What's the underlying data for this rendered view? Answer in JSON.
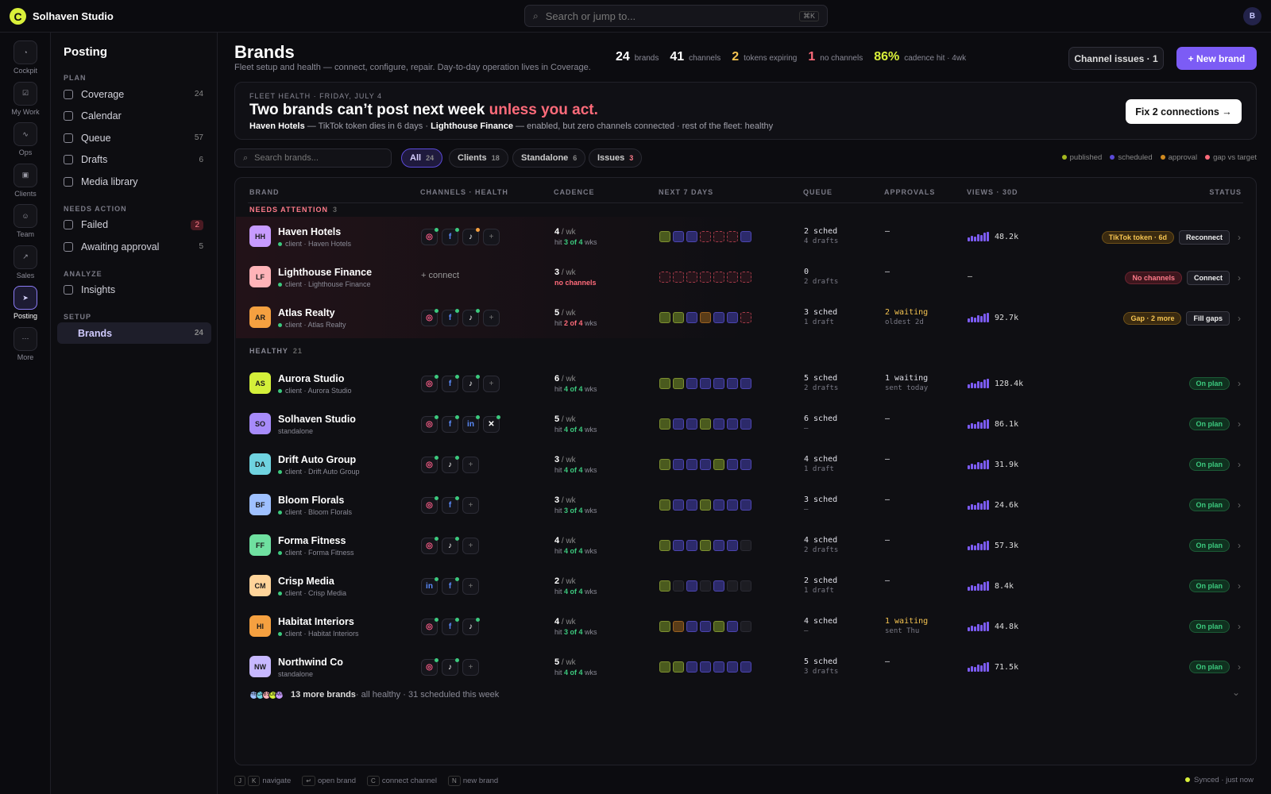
{
  "app": {
    "logo": "C",
    "name": "Solhaven Studio",
    "avatar": "B",
    "search_placeholder": "Search or jump to...",
    "search_kbd": "⌘K"
  },
  "rail": [
    {
      "label": "Cockpit",
      "icon": "gauge-icon"
    },
    {
      "label": "My Work",
      "icon": "check-square-icon"
    },
    {
      "label": "Ops",
      "icon": "activity-icon"
    },
    {
      "label": "Clients",
      "icon": "briefcase-icon"
    },
    {
      "label": "Team",
      "icon": "users-icon"
    },
    {
      "label": "Sales",
      "icon": "trend-icon"
    },
    {
      "label": "Posting",
      "icon": "send-icon",
      "active": true
    },
    {
      "label": "More",
      "icon": "dots-icon"
    }
  ],
  "sidebar": {
    "title": "Posting",
    "sections": [
      {
        "label": "PLAN",
        "items": [
          {
            "label": "Coverage",
            "count": "24"
          },
          {
            "label": "Calendar",
            "count": ""
          },
          {
            "label": "Queue",
            "count": "57"
          },
          {
            "label": "Drafts",
            "count": "6"
          },
          {
            "label": "Media library",
            "count": ""
          }
        ]
      },
      {
        "label": "NEEDS ACTION",
        "items": [
          {
            "label": "Failed",
            "count": "2"
          },
          {
            "label": "Awaiting approval",
            "count": "5"
          }
        ]
      },
      {
        "label": "ANALYZE",
        "items": [
          {
            "label": "Insights",
            "count": ""
          }
        ]
      },
      {
        "label": "SETUP",
        "items": [
          {
            "label": "Brands",
            "count": "24"
          }
        ]
      }
    ]
  },
  "header": {
    "title": "Brands",
    "subtitle": "Fleet setup and health — connect, configure, repair. Day-to-day operation lives in Coverage.",
    "stats": [
      {
        "n": "24",
        "l": "brands",
        "color": "#ffffff"
      },
      {
        "n": "41",
        "l": "channels",
        "color": "#ffffff"
      },
      {
        "n": "2",
        "l": "tokens expiring",
        "color": "#f5c451"
      },
      {
        "n": "1",
        "l": "no channels",
        "color": "#ff6b7a"
      },
      {
        "n": "86%",
        "l": "cadence hit · 4wk",
        "color": "#d9f03a"
      }
    ],
    "issues_btn": "Channel issues · 1",
    "new_btn": "+ New brand"
  },
  "hero": {
    "kicker": "FLEET HEALTH · FRIDAY, JULY 4",
    "headline": "Two brands can’t post next week ",
    "headline_accent": "unless you act.",
    "b1": "Haven Hotels",
    "t1": " — TikTok token dies in 6 days · ",
    "b2": "Lighthouse Finance",
    "t2": " — enabled, but zero channels connected · rest of the fleet: healthy",
    "btn": "Fix 2 connections →"
  },
  "filters": {
    "search_placeholder": "Search brands...",
    "chips": [
      {
        "label": "All",
        "count": "24",
        "on": true
      },
      {
        "label": "Clients",
        "count": "18"
      },
      {
        "label": "Standalone",
        "count": "6"
      },
      {
        "label": "Issues",
        "count": "3"
      }
    ],
    "legend": [
      {
        "label": "published",
        "color": "#a5b820"
      },
      {
        "label": "scheduled",
        "color": "#5b4ad8"
      },
      {
        "label": "approval",
        "color": "#d08a20"
      },
      {
        "label": "gap vs target",
        "color": "#ff6b7a"
      }
    ]
  },
  "columns": [
    "BRAND",
    "CHANNELS · HEALTH",
    "CADENCE",
    "NEXT 7 DAYS",
    "QUEUE",
    "APPROVALS",
    "VIEWS · 30D",
    "STATUS"
  ],
  "groups": {
    "attention": {
      "label": "NEEDS ATTENTION",
      "count": "3"
    },
    "healthy": {
      "label": "HEALTHY",
      "count": "21"
    }
  },
  "rows": [
    {
      "ini": "HH",
      "color": "#c79bff",
      "name": "Haven Hotels",
      "sub": "client · Haven Hotels",
      "ch": [
        [
          "ig",
          "#3cc97e"
        ],
        [
          "f",
          "#3cc97e"
        ],
        [
          "tt",
          "#f5a040"
        ],
        [
          "+",
          ""
        ]
      ],
      "rate": "4",
      "hit": "3 of 4",
      "hitc": "g",
      "days": "pssgggs",
      "q": "2 sched",
      "qs": "4 drafts",
      "ap": "—",
      "aps": "",
      "w": false,
      "views": "48.2k",
      "pill": "TikTok token · 6d",
      "pc": "o",
      "action": "Reconnect",
      "warn": true
    },
    {
      "ini": "LF",
      "color": "#ffb3b8",
      "name": "Lighthouse Finance",
      "sub": "client · Lighthouse Finance",
      "ch": [],
      "connect": "+ connect",
      "rate": "3",
      "nochan": "no channels",
      "days": "ggggggg",
      "q": "0",
      "qs": "2 drafts",
      "ap": "—",
      "aps": "",
      "views": "—",
      "pill": "No channels",
      "pc": "r",
      "action": "Connect",
      "warn": true
    },
    {
      "ini": "AR",
      "color": "#f5a040",
      "name": "Atlas Realty",
      "sub": "client · Atlas Realty",
      "ch": [
        [
          "ig",
          "#3cc97e"
        ],
        [
          "f",
          "#3cc97e"
        ],
        [
          "tt",
          "#3cc97e"
        ],
        [
          "+",
          ""
        ]
      ],
      "rate": "5",
      "hit": "2 of 4",
      "hitc": "r",
      "days": "ppsassg",
      "q": "3 sched",
      "qs": "1 draft",
      "ap": "2 waiting",
      "aps": "oldest 2d",
      "w": true,
      "views": "92.7k",
      "pill": "Gap · 2 more",
      "pc": "o",
      "action": "Fill gaps",
      "warn": true
    },
    {
      "ini": "AS",
      "color": "#d4f03a",
      "name": "Aurora Studio",
      "sub": "client · Aurora Studio",
      "ch": [
        [
          "ig",
          "#3cc97e"
        ],
        [
          "f",
          "#3cc97e"
        ],
        [
          "tt",
          "#3cc97e"
        ],
        [
          "+",
          ""
        ]
      ],
      "rate": "6",
      "hit": "4 of 4",
      "hitc": "g",
      "days": "ppsssss",
      "q": "5 sched",
      "qs": "2 drafts",
      "ap": "1 waiting",
      "aps": "sent today",
      "w": false,
      "views": "128.4k",
      "pill": "On plan",
      "pc": "g"
    },
    {
      "ini": "SO",
      "color": "#a78bfa",
      "name": "Solhaven Studio",
      "sub": "standalone",
      "ch": [
        [
          "ig",
          "#3cc97e"
        ],
        [
          "f",
          "#3cc97e"
        ],
        [
          "in",
          "#3cc97e"
        ],
        [
          "x",
          "#3cc97e"
        ]
      ],
      "rate": "5",
      "hit": "4 of 4",
      "hitc": "g",
      "days": "psspsss",
      "q": "6 sched",
      "qs": "—",
      "ap": "—",
      "aps": "",
      "views": "86.1k",
      "pill": "On plan",
      "pc": "g"
    },
    {
      "ini": "DA",
      "color": "#6fd3e0",
      "name": "Drift Auto Group",
      "sub": "client · Drift Auto Group",
      "ch": [
        [
          "ig",
          "#3cc97e"
        ],
        [
          "tt",
          "#3cc97e"
        ],
        [
          "+",
          ""
        ]
      ],
      "rate": "3",
      "hit": "4 of 4",
      "hitc": "g",
      "days": "psssps s",
      "q": "4 sched",
      "qs": "1 draft",
      "ap": "—",
      "aps": "",
      "views": "31.9k",
      "pill": "On plan",
      "pc": "g"
    },
    {
      "ini": "BF",
      "color": "#9ec0ff",
      "name": "Bloom Florals",
      "sub": "client · Bloom Florals",
      "ch": [
        [
          "ig",
          "#3cc97e"
        ],
        [
          "f",
          "#3cc97e"
        ],
        [
          "+",
          ""
        ]
      ],
      "rate": "3",
      "hit": "3 of 4",
      "hitc": "g",
      "days": "psspsss",
      "q": "3 sched",
      "qs": "—",
      "ap": "—",
      "aps": "",
      "views": "24.6k",
      "pill": "On plan",
      "pc": "g"
    },
    {
      "ini": "FF",
      "color": "#6fe0a0",
      "name": "Forma Fitness",
      "sub": "client · Forma Fitness",
      "ch": [
        [
          "ig",
          "#3cc97e"
        ],
        [
          "tt",
          "#3cc97e"
        ],
        [
          "+",
          ""
        ]
      ],
      "rate": "4",
      "hit": "4 of 4",
      "hitc": "g",
      "days": "psspsse",
      "q": "4 sched",
      "qs": "2 drafts",
      "ap": "—",
      "aps": "",
      "views": "57.3k",
      "pill": "On plan",
      "pc": "g"
    },
    {
      "ini": "CM",
      "color": "#ffd49a",
      "name": "Crisp Media",
      "sub": "client · Crisp Media",
      "ch": [
        [
          "in",
          "#3cc97e"
        ],
        [
          "f",
          "#3cc97e"
        ],
        [
          "+",
          ""
        ]
      ],
      "rate": "2",
      "hit": "4 of 4",
      "hitc": "g",
      "days": "pesesee",
      "q": "2 sched",
      "qs": "1 draft",
      "ap": "—",
      "aps": "",
      "views": "8.4k",
      "pill": "On plan",
      "pc": "g"
    },
    {
      "ini": "HI",
      "color": "#f5a040",
      "name": "Habitat Interiors",
      "sub": "client · Habitat Interiors",
      "ch": [
        [
          "ig",
          "#3cc97e"
        ],
        [
          "f",
          "#3cc97e"
        ],
        [
          "tt",
          "#3cc97e"
        ]
      ],
      "rate": "4",
      "hit": "3 of 4",
      "hitc": "g",
      "days": "passpse",
      "q": "4 sched",
      "qs": "—",
      "ap": "1 waiting",
      "aps": "sent Thu",
      "w": true,
      "views": "44.8k",
      "pill": "On plan",
      "pc": "g"
    },
    {
      "ini": "NW",
      "color": "#c7b8ff",
      "name": "Northwind Co",
      "sub": "standalone",
      "ch": [
        [
          "ig",
          "#3cc97e"
        ],
        [
          "tt",
          "#3cc97e"
        ],
        [
          "+",
          ""
        ]
      ],
      "rate": "5",
      "hit": "4 of 4",
      "hitc": "g",
      "days": "ppsssss",
      "q": "5 sched",
      "qs": "3 drafts",
      "ap": "—",
      "aps": "",
      "views": "71.5k",
      "pill": "On plan",
      "pc": "g"
    }
  ],
  "more_row": {
    "avatars": [
      [
        "HR",
        "#9ec0ff"
      ],
      [
        "CA",
        "#6fd3e0"
      ],
      [
        "BS",
        "#ffb3b8"
      ],
      [
        "OL",
        "#d4f03a"
      ],
      [
        "AM",
        "#c79bff"
      ]
    ],
    "bold": "13 more brands",
    "text": " · all healthy · 31 scheduled this week"
  },
  "footer": {
    "hints": [
      {
        "keys": [
          "J",
          "K"
        ],
        "label": "navigate"
      },
      {
        "keys": [
          "↵"
        ],
        "label": "open brand"
      },
      {
        "keys": [
          "C"
        ],
        "label": "connect channel"
      },
      {
        "keys": [
          "N"
        ],
        "label": "new brand"
      }
    ],
    "sync": "Synced · just now"
  },
  "suffix": {
    "per_wk": " / wk",
    "hit_pre": "hit ",
    "hit_post": " wks"
  }
}
